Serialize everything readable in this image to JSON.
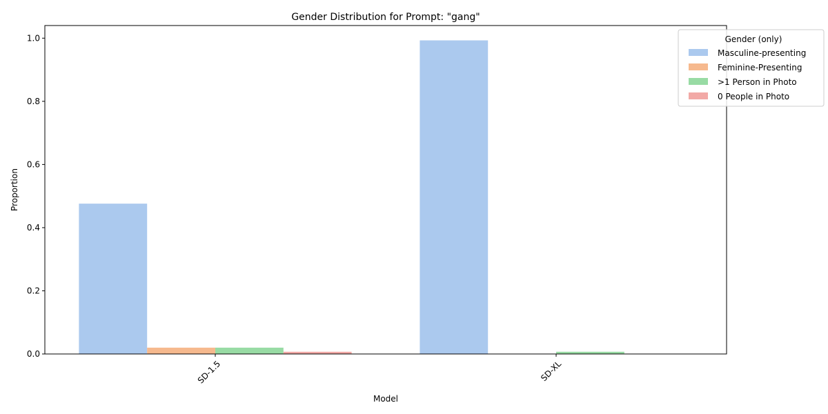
{
  "chart_data": {
    "type": "bar",
    "title": "Gender Distribution for Prompt: \"gang\"",
    "xlabel": "Model",
    "ylabel": "Proportion",
    "categories": [
      "SD-1.5",
      "SD-XL"
    ],
    "ylim": [
      0,
      1.04
    ],
    "yticks": [
      "0.0",
      "0.2",
      "0.4",
      "0.6",
      "0.8",
      "1.0"
    ],
    "ytick_values": [
      0,
      0.2,
      0.4,
      0.6,
      0.8,
      1.0
    ],
    "grid": false,
    "legend": {
      "title": "Gender (only)",
      "placement": "top-right"
    },
    "series": [
      {
        "name": "Masculine-presenting",
        "color": "#abc9ee",
        "values": [
          0.476,
          0.993
        ]
      },
      {
        "name": "Feminine-Presenting",
        "color": "#f6b98e",
        "values": [
          0.02,
          0.0
        ]
      },
      {
        "name": ">1 Person in Photo",
        "color": "#98dba4",
        "values": [
          0.02,
          0.007
        ]
      },
      {
        "name": "0 People in Photo",
        "color": "#f2a9a6",
        "values": [
          0.007,
          0.0
        ]
      }
    ]
  }
}
